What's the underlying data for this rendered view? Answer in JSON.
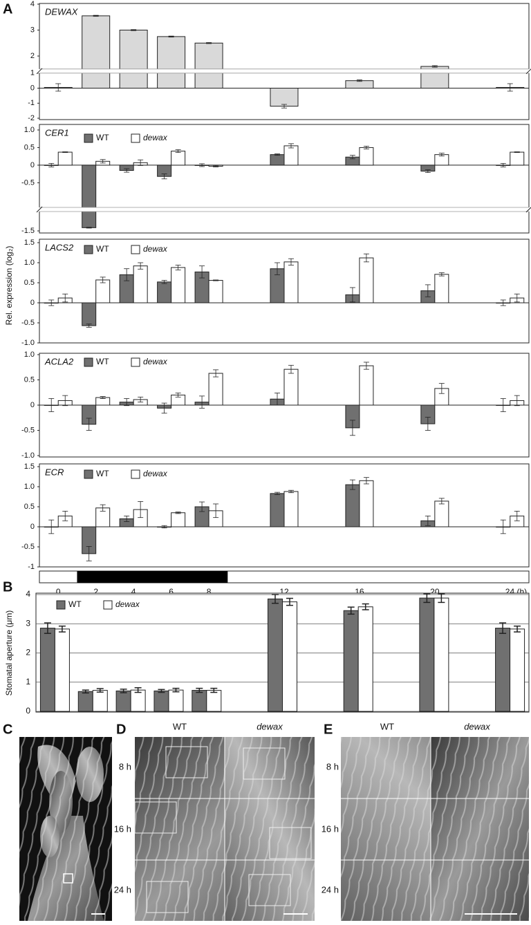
{
  "figure": {
    "panels": [
      "A",
      "B",
      "C",
      "D",
      "E"
    ],
    "ylabel": "Rel. expression (log₂)",
    "micrographs": {
      "columns": [
        "WT",
        "dewax"
      ],
      "rows": [
        "8 h",
        "16 h",
        "24 h"
      ]
    }
  },
  "chart_data": [
    {
      "type": "bar",
      "title": "DEWAX",
      "x": [
        0,
        2,
        4,
        6,
        8,
        12,
        16,
        20,
        24
      ],
      "xlim": [
        -1,
        25
      ],
      "ylim": [
        -2,
        4
      ],
      "yticks": [
        4,
        3,
        2,
        1,
        0,
        -1,
        -2
      ],
      "ybreak": [
        1,
        1.5
      ],
      "series": [
        {
          "color": "#d9d9d9",
          "values": [
            0.05,
            3.55,
            3.0,
            2.75,
            2.5,
            -1.2,
            0.5,
            1.6,
            0.05
          ],
          "errors": [
            0.25,
            0.02,
            0.02,
            0.02,
            0.02,
            0.12,
            0.05,
            0.03,
            0.25
          ]
        }
      ]
    },
    {
      "type": "bar",
      "title": "CER1",
      "x": [
        0,
        2,
        4,
        6,
        8,
        12,
        16,
        20,
        24
      ],
      "xlim": [
        -1,
        25
      ],
      "ylim": [
        -1.5,
        1
      ],
      "yticks": [
        {
          "value": 1,
          "label": "1.0"
        },
        0.5,
        0,
        -0.5,
        -1.5
      ],
      "ybreak": [
        -0.6,
        -1.2
      ],
      "series": [
        {
          "name": "WT",
          "color": "#707070",
          "values": [
            0,
            -1.35,
            -0.15,
            -0.32,
            0,
            0.3,
            0.23,
            -0.17,
            0
          ],
          "errors": [
            0.05,
            0.02,
            0.05,
            0.07,
            0.04,
            0.02,
            0.05,
            0.04,
            0.05
          ]
        },
        {
          "name": "dewax",
          "italic": true,
          "color": "#ffffff",
          "values": [
            0.37,
            0.11,
            0.07,
            0.4,
            -0.03,
            0.55,
            0.5,
            0.3,
            0.37
          ],
          "errors": [
            0.01,
            0.05,
            0.08,
            0.04,
            0.02,
            0.06,
            0.04,
            0.04,
            0.01
          ]
        }
      ]
    },
    {
      "type": "bar",
      "title": "LACS2",
      "x": [
        0,
        2,
        4,
        6,
        8,
        12,
        16,
        20,
        24
      ],
      "xlim": [
        -1,
        25
      ],
      "ylim": [
        -1,
        1.5
      ],
      "yticks": [
        1.5,
        {
          "value": 1,
          "label": "1.0"
        },
        0.5,
        0,
        -0.5,
        {
          "value": -1,
          "label": "-1.0"
        }
      ],
      "series": [
        {
          "name": "WT",
          "color": "#707070",
          "values": [
            0,
            -0.57,
            0.7,
            0.52,
            0.77,
            0.85,
            0.2,
            0.3,
            0
          ],
          "errors": [
            0.07,
            0.04,
            0.15,
            0.04,
            0.15,
            0.15,
            0.18,
            0.15,
            0.07
          ]
        },
        {
          "name": "dewax",
          "italic": true,
          "color": "#ffffff",
          "values": [
            0.12,
            0.57,
            0.92,
            0.88,
            0.56,
            1.02,
            1.12,
            0.71,
            0.12
          ],
          "errors": [
            0.1,
            0.07,
            0.08,
            0.06,
            0.01,
            0.08,
            0.1,
            0.04,
            0.1
          ]
        }
      ]
    },
    {
      "type": "bar",
      "title": "ACLA2",
      "x": [
        0,
        2,
        4,
        6,
        8,
        12,
        16,
        20,
        24
      ],
      "xlim": [
        -1,
        25
      ],
      "ylim": [
        -1,
        1
      ],
      "yticks": [
        {
          "value": 1,
          "label": "1.0"
        },
        0.5,
        0,
        -0.5,
        {
          "value": -1,
          "label": "-1.0"
        }
      ],
      "series": [
        {
          "name": "WT",
          "color": "#707070",
          "values": [
            0,
            -0.38,
            0.06,
            -0.06,
            0.06,
            0.12,
            -0.45,
            -0.37,
            0
          ],
          "errors": [
            0.13,
            0.12,
            0.07,
            0.1,
            0.12,
            0.12,
            0.15,
            0.13,
            0.13
          ]
        },
        {
          "name": "dewax",
          "italic": true,
          "color": "#ffffff",
          "values": [
            0.09,
            0.15,
            0.11,
            0.2,
            0.63,
            0.71,
            0.78,
            0.33,
            0.09
          ],
          "errors": [
            0.1,
            0.02,
            0.05,
            0.04,
            0.07,
            0.08,
            0.07,
            0.1,
            0.1
          ]
        }
      ]
    },
    {
      "type": "bar",
      "title": "ECR",
      "x": [
        0,
        2,
        4,
        6,
        8,
        12,
        16,
        20,
        24
      ],
      "xlim": [
        -1,
        25
      ],
      "ylim": [
        -1,
        1.5
      ],
      "yticks": [
        1.5,
        {
          "value": 1,
          "label": "1.0"
        },
        0.5,
        0,
        -0.5,
        -1
      ],
      "xticks": [
        0,
        2,
        4,
        6,
        8,
        12,
        16,
        20,
        {
          "value": 24,
          "label": "24 (h)"
        }
      ],
      "dark_period": [
        1,
        9
      ],
      "series": [
        {
          "name": "WT",
          "color": "#707070",
          "values": [
            0,
            -0.67,
            0.2,
            0,
            0.5,
            0.83,
            1.05,
            0.15,
            0
          ],
          "errors": [
            0.17,
            0.18,
            0.07,
            0.03,
            0.12,
            0.03,
            0.12,
            0.12,
            0.17
          ]
        },
        {
          "name": "dewax",
          "italic": true,
          "color": "#ffffff",
          "values": [
            0.27,
            0.47,
            0.43,
            0.35,
            0.4,
            0.88,
            1.15,
            0.64,
            0.27
          ],
          "errors": [
            0.12,
            0.08,
            0.2,
            0.02,
            0.17,
            0.03,
            0.08,
            0.07,
            0.12
          ]
        }
      ]
    },
    {
      "type": "bar",
      "ylabel": "Stomatal aperture (μm)",
      "x": [
        0,
        2,
        4,
        6,
        8,
        12,
        16,
        20,
        24
      ],
      "xlim": [
        -1,
        25
      ],
      "ylim": [
        0,
        4
      ],
      "yticks": [
        0,
        1,
        2,
        3,
        4
      ],
      "grid": true,
      "series": [
        {
          "name": "WT",
          "color": "#707070",
          "values": [
            2.85,
            0.68,
            0.7,
            0.7,
            0.72,
            3.85,
            3.45,
            3.88,
            2.85
          ],
          "errors": [
            0.18,
            0.05,
            0.06,
            0.05,
            0.07,
            0.15,
            0.12,
            0.15,
            0.18
          ]
        },
        {
          "name": "dewax",
          "italic": true,
          "color": "#ffffff",
          "values": [
            2.82,
            0.72,
            0.73,
            0.73,
            0.72,
            3.75,
            3.58,
            3.88,
            2.82
          ],
          "errors": [
            0.1,
            0.06,
            0.08,
            0.06,
            0.07,
            0.12,
            0.1,
            0.15,
            0.1
          ]
        }
      ]
    }
  ]
}
